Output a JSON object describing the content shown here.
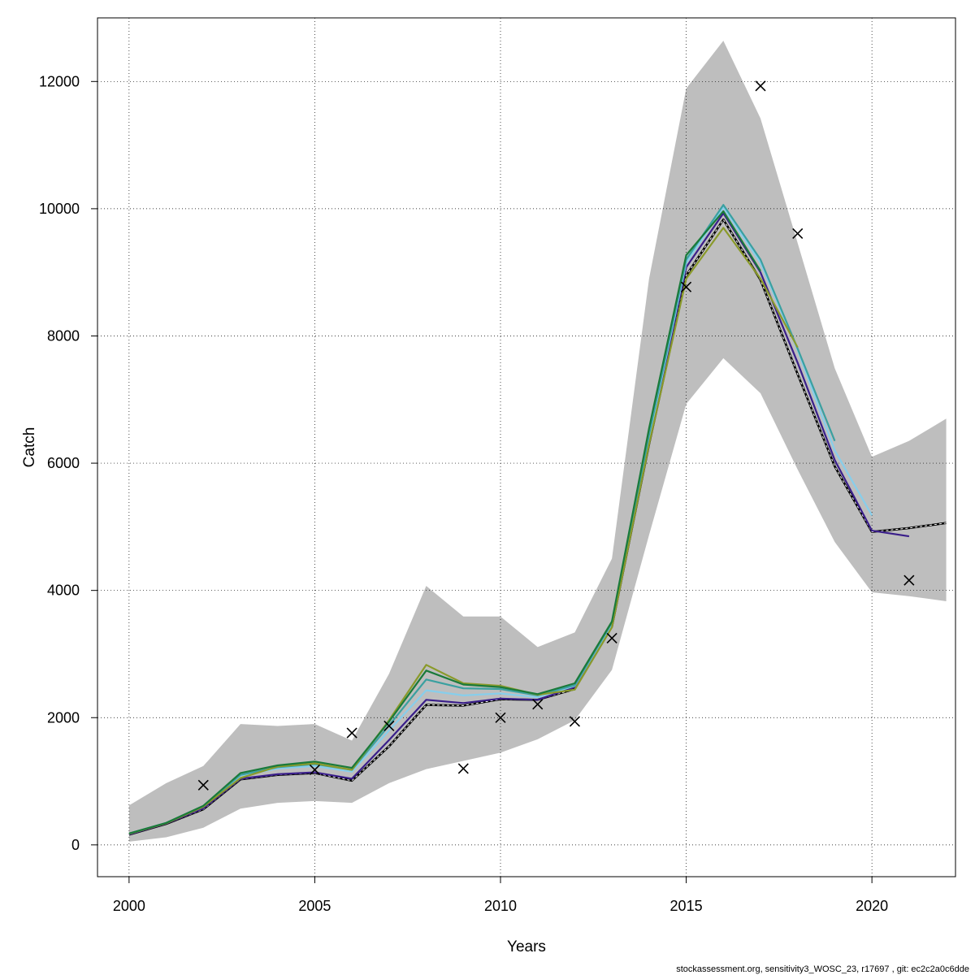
{
  "chart_data": {
    "type": "line",
    "xlabel": "Years",
    "ylabel": "Catch",
    "xlim": [
      1999.15,
      2022.25
    ],
    "ylim": [
      -500,
      13000
    ],
    "x_ticks": [
      2000,
      2005,
      2010,
      2015,
      2020
    ],
    "y_ticks": [
      0,
      2000,
      4000,
      6000,
      8000,
      10000,
      12000
    ],
    "x_tick_labels": [
      "2000",
      "2005",
      "2010",
      "2015",
      "2020"
    ],
    "y_tick_labels": [
      "0",
      "2000",
      "4000",
      "6000",
      "8000",
      "10000",
      "12000"
    ],
    "grid": true,
    "confidence_band": {
      "color": "#bebebe",
      "x": [
        2000,
        2001,
        2002,
        2003,
        2004,
        2005,
        2006,
        2007,
        2008,
        2009,
        2010,
        2011,
        2012,
        2013,
        2014,
        2015,
        2016,
        2017,
        2018,
        2019,
        2020,
        2021,
        2022
      ],
      "lower": [
        50,
        120,
        270,
        570,
        660,
        690,
        660,
        970,
        1190,
        1320,
        1450,
        1660,
        1960,
        2750,
        4870,
        6930,
        7650,
        7100,
        5900,
        4760,
        3970,
        3910,
        3830
      ],
      "upper": [
        620,
        970,
        1240,
        1900,
        1870,
        1900,
        1640,
        2690,
        4070,
        3590,
        3590,
        3110,
        3340,
        4500,
        8900,
        11890,
        12640,
        11420,
        9460,
        7490,
        6100,
        6350,
        6700
      ]
    },
    "series": [
      {
        "color": "#000000",
        "dashed": true,
        "x": [
          2000,
          2001,
          2002,
          2003,
          2004,
          2005,
          2006,
          2007,
          2008,
          2009,
          2010,
          2011,
          2012,
          2013,
          2014,
          2015,
          2016,
          2017,
          2018,
          2019,
          2020,
          2021,
          2022
        ],
        "values": [
          160,
          330,
          560,
          1030,
          1100,
          1130,
          1010,
          1550,
          2200,
          2190,
          2290,
          2280,
          2450,
          3430,
          6300,
          8950,
          9830,
          8880,
          7400,
          5950,
          4920,
          4980,
          5060
        ]
      },
      {
        "color": "#3a1e8a",
        "x": [
          2000,
          2001,
          2002,
          2003,
          2004,
          2005,
          2006,
          2007,
          2008,
          2009,
          2010,
          2011,
          2012,
          2013,
          2014,
          2015,
          2016,
          2017,
          2018,
          2019,
          2020,
          2021
        ],
        "values": [
          165,
          335,
          575,
          1040,
          1110,
          1140,
          1040,
          1650,
          2280,
          2230,
          2300,
          2280,
          2480,
          3450,
          6350,
          9080,
          9930,
          9000,
          7580,
          6050,
          4940,
          4850
        ]
      },
      {
        "color": "#87ceeb",
        "x": [
          2000,
          2001,
          2002,
          2003,
          2004,
          2005,
          2006,
          2007,
          2008,
          2009,
          2010,
          2011,
          2012,
          2013,
          2014,
          2015,
          2016,
          2017,
          2018,
          2019,
          2020
        ],
        "values": [
          175,
          345,
          600,
          1090,
          1200,
          1240,
          1150,
          1800,
          2430,
          2350,
          2380,
          2320,
          2500,
          3470,
          6400,
          9150,
          10020,
          9150,
          7780,
          6200,
          5180
        ]
      },
      {
        "color": "#3aa0a0",
        "x": [
          2000,
          2001,
          2002,
          2003,
          2004,
          2005,
          2006,
          2007,
          2008,
          2009,
          2010,
          2011,
          2012,
          2013,
          2014,
          2015,
          2016,
          2017,
          2018,
          2019
        ],
        "values": [
          180,
          345,
          610,
          1100,
          1220,
          1270,
          1180,
          1880,
          2600,
          2460,
          2450,
          2350,
          2510,
          3490,
          6450,
          9200,
          10060,
          9200,
          7800,
          6350
        ]
      },
      {
        "color": "#8a9a2a",
        "x": [
          2000,
          2001,
          2002,
          2003,
          2004,
          2005,
          2006,
          2007,
          2008,
          2009,
          2010,
          2011,
          2012,
          2013,
          2014,
          2015,
          2016,
          2017,
          2018
        ],
        "values": [
          175,
          340,
          600,
          1050,
          1230,
          1280,
          1180,
          1960,
          2830,
          2540,
          2500,
          2360,
          2440,
          3420,
          6300,
          8900,
          9700,
          8900,
          7820
        ]
      },
      {
        "color": "#1a7a3a",
        "x": [
          2000,
          2001,
          2002,
          2003,
          2004,
          2005,
          2006,
          2007,
          2008,
          2009,
          2010,
          2011,
          2012,
          2013,
          2014,
          2015,
          2016,
          2017
        ],
        "values": [
          180,
          345,
          615,
          1130,
          1250,
          1310,
          1210,
          1940,
          2740,
          2520,
          2480,
          2370,
          2540,
          3510,
          6550,
          9270,
          9960,
          9020
        ]
      }
    ],
    "observed": {
      "marker": "x",
      "x": [
        2002,
        2005,
        2006,
        2007,
        2009,
        2010,
        2011,
        2012,
        2013,
        2015,
        2017,
        2018,
        2021
      ],
      "values": [
        940,
        1180,
        1760,
        1870,
        1200,
        2000,
        2210,
        1940,
        3250,
        8770,
        11930,
        9610,
        4160
      ]
    }
  },
  "footer_text": "stockassessment.org, sensitivity3_WOSC_23, r17697 , git: ec2c2a0c6dde"
}
